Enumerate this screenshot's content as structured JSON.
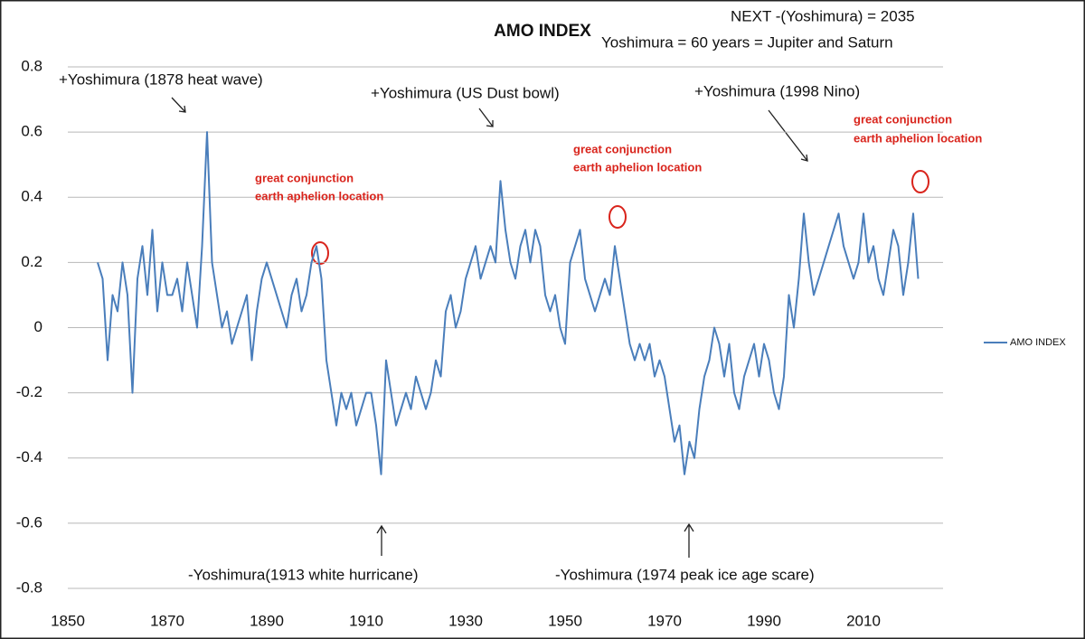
{
  "chart_data": {
    "type": "line",
    "title": "AMO INDEX",
    "annotations": [
      "NEXT -(Yoshimura) = 2035",
      "Yoshimura = 60 years = Jupiter and Saturn",
      "+Yoshimura (1878 heat wave)",
      "+Yoshimura (US Dust bowl)",
      "+Yoshimura (1998 Nino)",
      "great conjunction",
      "earth aphelion location",
      "great conjunction",
      "earth aphelion location",
      "great conjunction",
      "earth aphelion location",
      "-Yoshimura(1913 white hurricane)",
      "-Yoshimura (1974 peak ice age scare)"
    ],
    "x": [
      1856,
      1857,
      1858,
      1859,
      1860,
      1861,
      1862,
      1863,
      1864,
      1865,
      1866,
      1867,
      1868,
      1869,
      1870,
      1871,
      1872,
      1873,
      1874,
      1875,
      1876,
      1877,
      1878,
      1879,
      1880,
      1881,
      1882,
      1883,
      1884,
      1885,
      1886,
      1887,
      1888,
      1889,
      1890,
      1891,
      1892,
      1893,
      1894,
      1895,
      1896,
      1897,
      1898,
      1899,
      1900,
      1901,
      1902,
      1903,
      1904,
      1905,
      1906,
      1907,
      1908,
      1909,
      1910,
      1911,
      1912,
      1913,
      1914,
      1915,
      1916,
      1917,
      1918,
      1919,
      1920,
      1921,
      1922,
      1923,
      1924,
      1925,
      1926,
      1927,
      1928,
      1929,
      1930,
      1931,
      1932,
      1933,
      1934,
      1935,
      1936,
      1937,
      1938,
      1939,
      1940,
      1941,
      1942,
      1943,
      1944,
      1945,
      1946,
      1947,
      1948,
      1949,
      1950,
      1951,
      1952,
      1953,
      1954,
      1955,
      1956,
      1957,
      1958,
      1959,
      1960,
      1961,
      1962,
      1963,
      1964,
      1965,
      1966,
      1967,
      1968,
      1969,
      1970,
      1971,
      1972,
      1973,
      1974,
      1975,
      1976,
      1977,
      1978,
      1979,
      1980,
      1981,
      1982,
      1983,
      1984,
      1985,
      1986,
      1987,
      1988,
      1989,
      1990,
      1991,
      1992,
      1993,
      1994,
      1995,
      1996,
      1997,
      1998,
      1999,
      2000,
      2001,
      2002,
      2003,
      2004,
      2005,
      2006,
      2007,
      2008,
      2009,
      2010,
      2011,
      2012,
      2013,
      2014,
      2015,
      2016,
      2017,
      2018,
      2019,
      2020,
      2021
    ],
    "series": [
      {
        "name": "AMO INDEX",
        "color": "#4a7ebb",
        "values": [
          0.2,
          0.15,
          -0.1,
          0.1,
          0.05,
          0.2,
          0.1,
          -0.2,
          0.15,
          0.25,
          0.1,
          0.3,
          0.05,
          0.2,
          0.1,
          0.1,
          0.15,
          0.05,
          0.2,
          0.1,
          0.0,
          0.25,
          0.6,
          0.2,
          0.1,
          0.0,
          0.05,
          -0.05,
          0.0,
          0.05,
          0.1,
          -0.1,
          0.05,
          0.15,
          0.2,
          0.15,
          0.1,
          0.05,
          0.0,
          0.1,
          0.15,
          0.05,
          0.1,
          0.2,
          0.25,
          0.15,
          -0.1,
          -0.2,
          -0.3,
          -0.2,
          -0.25,
          -0.2,
          -0.3,
          -0.25,
          -0.2,
          -0.2,
          -0.3,
          -0.45,
          -0.1,
          -0.2,
          -0.3,
          -0.25,
          -0.2,
          -0.25,
          -0.15,
          -0.2,
          -0.25,
          -0.2,
          -0.1,
          -0.15,
          0.05,
          0.1,
          0.0,
          0.05,
          0.15,
          0.2,
          0.25,
          0.15,
          0.2,
          0.25,
          0.2,
          0.45,
          0.3,
          0.2,
          0.15,
          0.25,
          0.3,
          0.2,
          0.3,
          0.25,
          0.1,
          0.05,
          0.1,
          0.0,
          -0.05,
          0.2,
          0.25,
          0.3,
          0.15,
          0.1,
          0.05,
          0.1,
          0.15,
          0.1,
          0.25,
          0.15,
          0.05,
          -0.05,
          -0.1,
          -0.05,
          -0.1,
          -0.05,
          -0.15,
          -0.1,
          -0.15,
          -0.25,
          -0.35,
          -0.3,
          -0.45,
          -0.35,
          -0.4,
          -0.25,
          -0.15,
          -0.1,
          0.0,
          -0.05,
          -0.15,
          -0.05,
          -0.2,
          -0.25,
          -0.15,
          -0.1,
          -0.05,
          -0.15,
          -0.05,
          -0.1,
          -0.2,
          -0.25,
          -0.15,
          0.1,
          0.0,
          0.15,
          0.35,
          0.2,
          0.1,
          0.15,
          0.2,
          0.25,
          0.3,
          0.35,
          0.25,
          0.2,
          0.15,
          0.2,
          0.35,
          0.2,
          0.25,
          0.15,
          0.1,
          0.2,
          0.3,
          0.25,
          0.1,
          0.2,
          0.35,
          0.15
        ]
      }
    ],
    "xlim": [
      1850,
      2026
    ],
    "xticks": [
      1850,
      1870,
      1890,
      1910,
      1930,
      1950,
      1970,
      1990,
      2010
    ],
    "ylim": [
      -0.8,
      0.8
    ],
    "yticks": [
      -0.8,
      -0.6,
      -0.4,
      -0.2,
      0,
      0.2,
      0.4,
      0.6,
      0.8
    ],
    "grid": true,
    "legend": "right"
  }
}
